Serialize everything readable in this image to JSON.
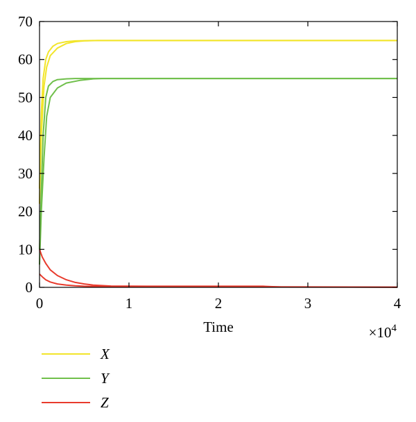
{
  "chart_data": {
    "type": "line",
    "xlabel": "Time",
    "ylabel": "",
    "x_multiplier_label": "×10",
    "x_multiplier_exponent": "4",
    "xlim": [
      0,
      40000
    ],
    "ylim": [
      0,
      70
    ],
    "x_ticks": [
      0,
      10000,
      20000,
      30000,
      40000
    ],
    "x_tick_labels": [
      "0",
      "1",
      "2",
      "3",
      "4"
    ],
    "y_ticks": [
      0,
      10,
      20,
      30,
      40,
      50,
      60,
      70
    ],
    "y_tick_labels": [
      "0",
      "10",
      "20",
      "30",
      "40",
      "50",
      "60",
      "70"
    ],
    "grid": false,
    "legend_position": "bottom-left",
    "series": [
      {
        "name": "X",
        "color": "#f2e52a",
        "x": [
          0,
          200,
          400,
          700,
          1000,
          1500,
          2000,
          3000,
          4000,
          6000,
          40000
        ],
        "y": [
          26,
          46,
          55,
          60,
          62,
          63.5,
          64.2,
          64.7,
          64.9,
          65,
          65
        ]
      },
      {
        "name": "X",
        "color": "#f2e52a",
        "x": [
          0,
          200,
          500,
          800,
          1200,
          2000,
          3000,
          4000,
          5000,
          6500,
          40000
        ],
        "y": [
          22,
          40,
          53,
          58,
          61,
          63,
          64.2,
          64.7,
          64.9,
          65,
          65
        ]
      },
      {
        "name": "Y",
        "color": "#6fbf4a",
        "x": [
          0,
          200,
          400,
          700,
          1000,
          1500,
          2000,
          3000,
          4000,
          5000,
          40000
        ],
        "y": [
          10,
          25,
          40,
          50,
          53,
          54.2,
          54.7,
          54.9,
          55,
          55,
          55
        ]
      },
      {
        "name": "Y",
        "color": "#6fbf4a",
        "x": [
          0,
          200,
          500,
          800,
          1200,
          2000,
          3000,
          4500,
          6000,
          7000,
          40000
        ],
        "y": [
          6,
          20,
          34,
          45,
          50,
          52.5,
          53.8,
          54.5,
          54.9,
          55,
          55
        ]
      },
      {
        "name": "Z",
        "color": "#e83a2c",
        "x": [
          0,
          300,
          700,
          1200,
          2000,
          3000,
          4000,
          5000,
          6000,
          8000,
          12000,
          25000,
          27000,
          40000
        ],
        "y": [
          10,
          8,
          6.3,
          4.6,
          3.1,
          2,
          1.3,
          0.9,
          0.6,
          0.35,
          0.3,
          0.3,
          0.1,
          0.05
        ]
      },
      {
        "name": "Z",
        "color": "#e83a2c",
        "x": [
          0,
          300,
          700,
          1200,
          2000,
          3000,
          4000,
          5000,
          6000,
          10000,
          25000,
          40000
        ],
        "y": [
          3.5,
          2.8,
          2,
          1.4,
          0.9,
          0.6,
          0.4,
          0.3,
          0.25,
          0.2,
          0.15,
          0.05
        ]
      }
    ],
    "legend": [
      {
        "label": "X",
        "color": "#f2e52a"
      },
      {
        "label": "Y",
        "color": "#6fbf4a"
      },
      {
        "label": "Z",
        "color": "#e83a2c"
      }
    ]
  }
}
